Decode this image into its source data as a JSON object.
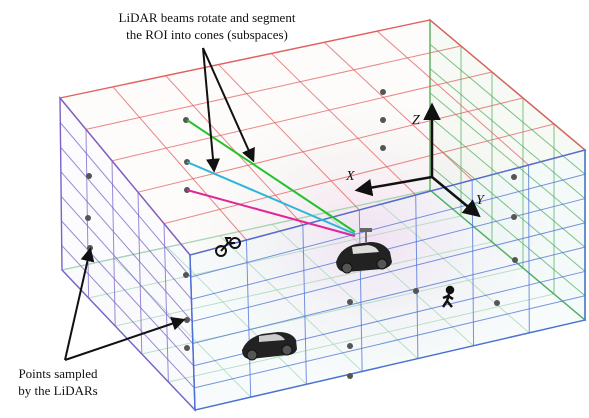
{
  "annotations": {
    "beams": [
      "LiDAR beams rotate and segment",
      "the ROI into cones (subspaces)"
    ],
    "points": [
      "Points sampled",
      "by the LiDARs"
    ]
  },
  "axes": {
    "x": "X",
    "y": "Y",
    "z": "Z"
  }
}
